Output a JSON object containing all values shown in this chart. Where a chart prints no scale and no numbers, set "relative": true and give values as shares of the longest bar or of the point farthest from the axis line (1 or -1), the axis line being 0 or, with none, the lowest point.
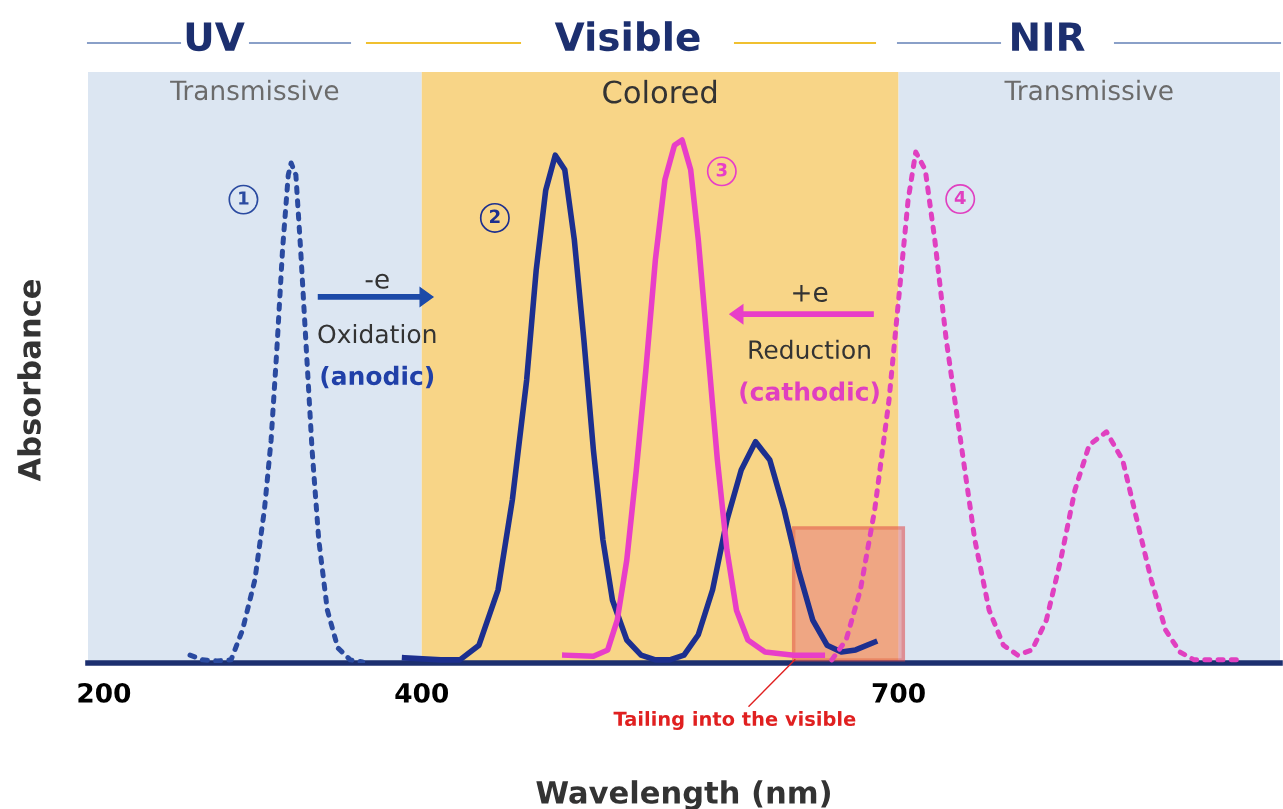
{
  "chart_data": {
    "type": "line",
    "relative": true,
    "xlabel": "Wavelength (nm)",
    "ylabel": "Absorbance",
    "xlim": [
      190,
      940
    ],
    "xticks": [
      200,
      400,
      700
    ],
    "marker": "none",
    "grid": false,
    "legend": false,
    "bands": [
      {
        "axis": "x",
        "from": 190,
        "to": 400,
        "label": "Transmissive",
        "color": "#dce6f2"
      },
      {
        "axis": "x",
        "from": 400,
        "to": 700,
        "label": "Colored",
        "color": "#f8d587"
      },
      {
        "axis": "x",
        "from": 700,
        "to": 940,
        "label": "Transmissive",
        "color": "#dce6f2"
      }
    ],
    "annotations": [
      "UV",
      "Visible",
      "NIR",
      "-e",
      "Oxidation",
      "(anodic)",
      "+e",
      "Reduction",
      "(cathodic)",
      {
        "text": "Tailing into the visible",
        "x": 636,
        "y": 0.01
      }
    ],
    "series": [
      {
        "name": "1",
        "color": "#2a4aa0",
        "line_style": "dotted",
        "x": [
          254.2,
          262,
          271,
          280,
          287.2,
          295,
          301,
          305.2,
          308.8,
          312.4,
          316,
          317.8,
          320.8,
          323.8,
          327.4,
          331,
          335.2,
          340.6,
          347.2,
          355,
          362.8
        ],
        "values": [
          0.015,
          0.006,
          0.004,
          0.006,
          0.063,
          0.159,
          0.293,
          0.426,
          0.598,
          0.79,
          0.933,
          0.956,
          0.933,
          0.79,
          0.598,
          0.407,
          0.235,
          0.101,
          0.029,
          0.006,
          0.002
        ]
      },
      {
        "name": "2",
        "color": "#1c2f8f",
        "line_style": "solid",
        "x": [
          389.2,
          412,
          424,
          436,
          448,
          457,
          466,
          472,
          478,
          484,
          490,
          496,
          502,
          508,
          514,
          520,
          529,
          538,
          547,
          556,
          565,
          574,
          583,
          592,
          601,
          610,
          619,
          628,
          637,
          646,
          655,
          664,
          673,
          685
        ],
        "values": [
          0.01,
          0.006,
          0.006,
          0.034,
          0.14,
          0.312,
          0.541,
          0.751,
          0.904,
          0.971,
          0.943,
          0.809,
          0.618,
          0.407,
          0.235,
          0.12,
          0.044,
          0.015,
          0.006,
          0.006,
          0.015,
          0.054,
          0.14,
          0.273,
          0.369,
          0.423,
          0.388,
          0.293,
          0.178,
          0.082,
          0.034,
          0.021,
          0.025,
          0.04
        ]
      },
      {
        "name": "3",
        "color": "#e83ec8",
        "line_style": "solid",
        "x": [
          490,
          508,
          517,
          523,
          529,
          535,
          541,
          547,
          553,
          559,
          563.8,
          569.2,
          574,
          580,
          586,
          592,
          598,
          605.2,
          616,
          634,
          652
        ],
        "values": [
          0.015,
          0.013,
          0.025,
          0.082,
          0.197,
          0.369,
          0.56,
          0.771,
          0.924,
          0.99,
          1,
          0.943,
          0.809,
          0.598,
          0.388,
          0.216,
          0.101,
          0.044,
          0.021,
          0.015,
          0.015
        ]
      },
      {
        "name": "4",
        "color": "#e040c0",
        "line_style": "dotted",
        "x": [
          658,
          667,
          676,
          685,
          694,
          700,
          706,
          710.8,
          716.8,
          722.8,
          730,
          739,
          748,
          757,
          766,
          775,
          784,
          793,
          802,
          811,
          820,
          830.8,
          841,
          850,
          859,
          868,
          877,
          886,
          916
        ],
        "values": [
          0.006,
          0.044,
          0.14,
          0.293,
          0.503,
          0.694,
          0.885,
          0.977,
          0.943,
          0.809,
          0.618,
          0.426,
          0.235,
          0.101,
          0.034,
          0.015,
          0.025,
          0.082,
          0.197,
          0.331,
          0.417,
          0.442,
          0.388,
          0.273,
          0.159,
          0.063,
          0.021,
          0.006,
          0.006
        ]
      }
    ]
  }
}
